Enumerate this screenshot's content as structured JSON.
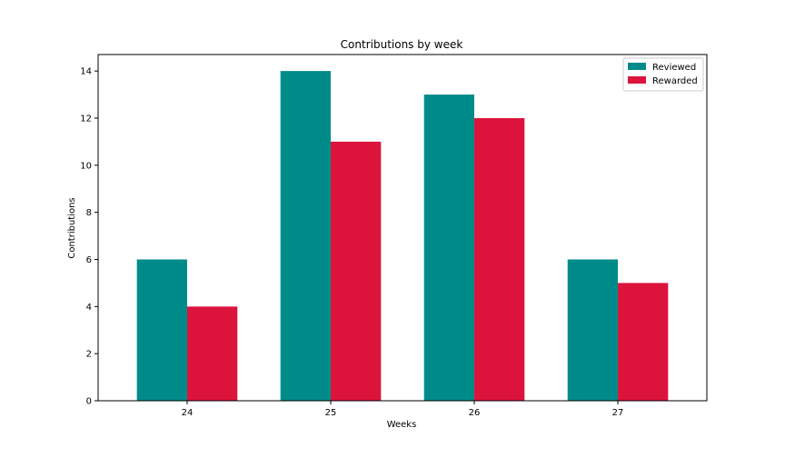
{
  "chart_data": {
    "type": "bar",
    "title": "Contributions by week",
    "xlabel": "Weeks",
    "ylabel": "Contributions",
    "categories": [
      "24",
      "25",
      "26",
      "27"
    ],
    "series": [
      {
        "name": "Reviewed",
        "values": [
          6,
          14,
          13,
          6
        ],
        "color": "#008b8b"
      },
      {
        "name": "Rewarded",
        "values": [
          4,
          11,
          12,
          5
        ],
        "color": "#dc143c"
      }
    ],
    "ylim": [
      0,
      14.7
    ],
    "yticks": [
      0,
      2,
      4,
      6,
      8,
      10,
      12,
      14
    ],
    "grid": false,
    "legend_position": "top-right"
  }
}
